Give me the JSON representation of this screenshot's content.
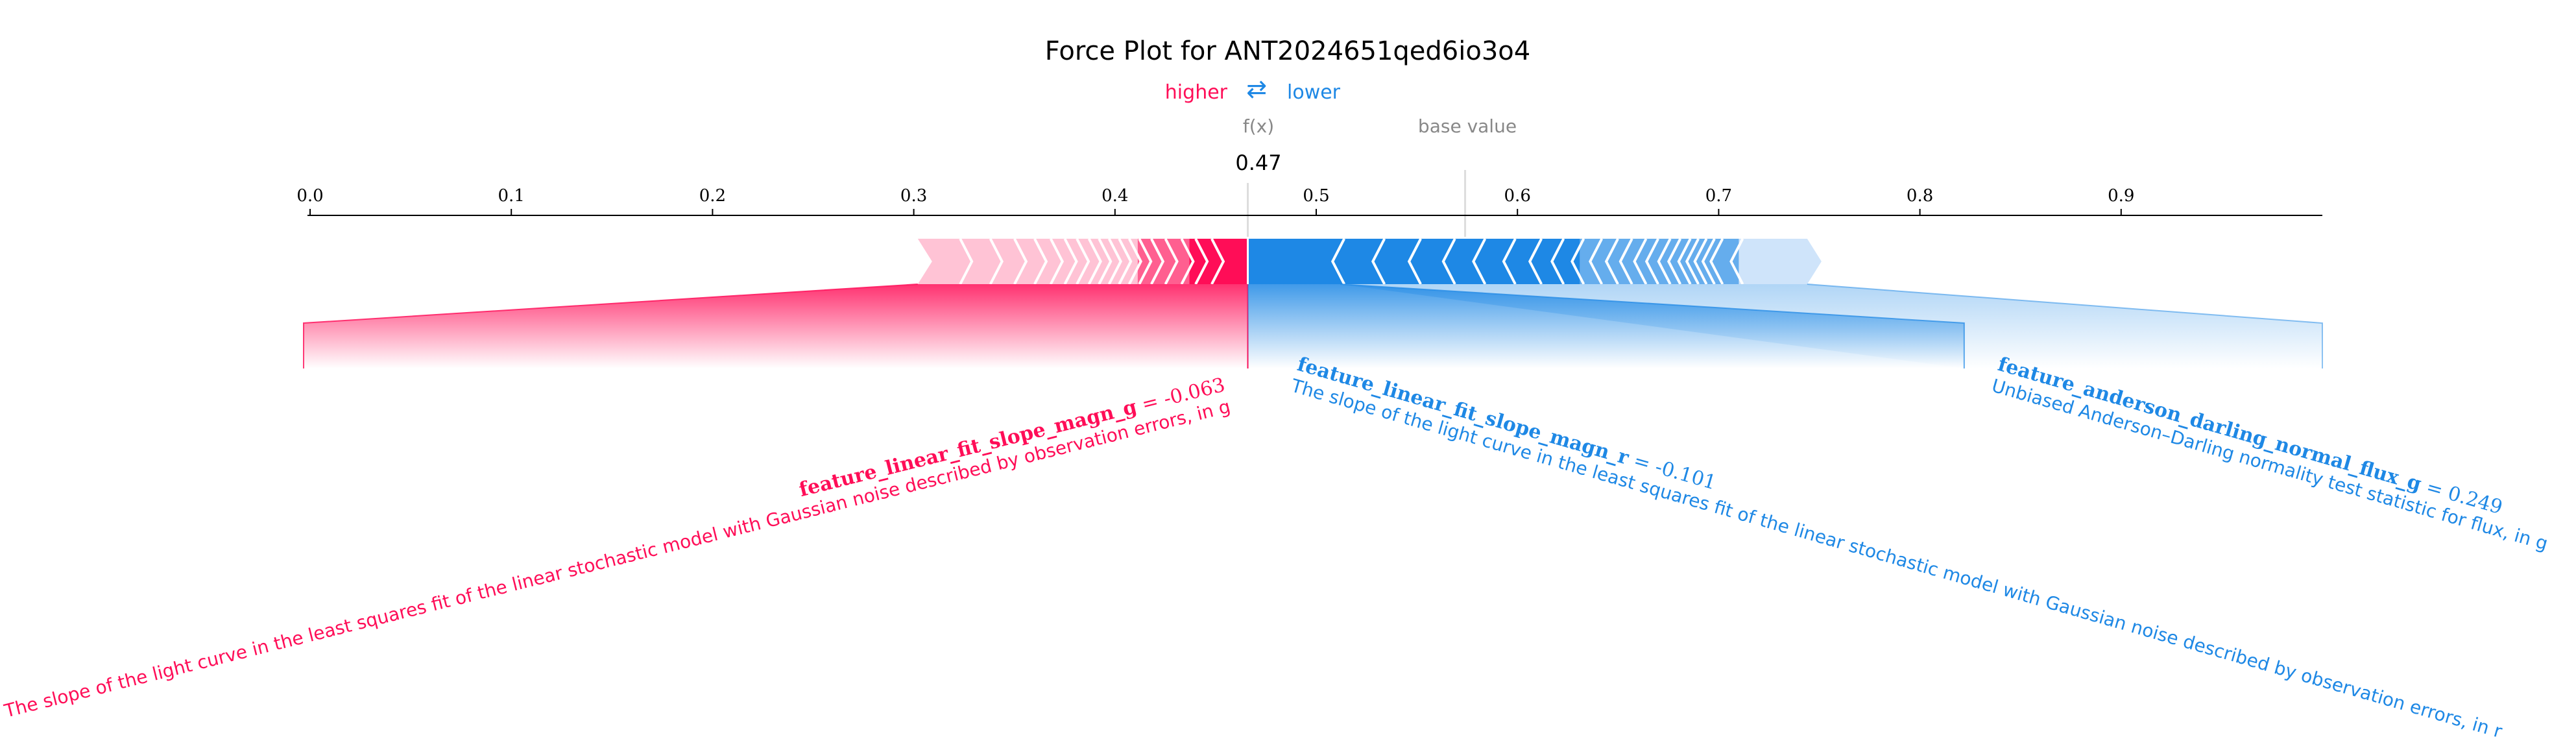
{
  "colors": {
    "positive": "#ff0d57",
    "negative": "#1e88e5",
    "neutral": "#888888",
    "axis": "#000000"
  },
  "chart_data": {
    "type": "force",
    "title": "Force Plot for ANT2024651qed6io3o4",
    "legend": {
      "higher": "higher",
      "arrows": "⇄",
      "lower": "lower"
    },
    "output_label": "f(x)",
    "output_value_label": "0.47",
    "base_value_label": "base value",
    "output_value": 0.466,
    "base_value": 0.574,
    "xlim": [
      0.0,
      1.0
    ],
    "ticks": [
      {
        "value": 0.0,
        "label": "0.0"
      },
      {
        "value": 0.1,
        "label": "0.1"
      },
      {
        "value": 0.2,
        "label": "0.2"
      },
      {
        "value": 0.3,
        "label": "0.3"
      },
      {
        "value": 0.4,
        "label": "0.4"
      },
      {
        "value": 0.5,
        "label": "0.5"
      },
      {
        "value": 0.6,
        "label": "0.6"
      },
      {
        "value": 0.7,
        "label": "0.7"
      },
      {
        "value": 0.8,
        "label": "0.8"
      },
      {
        "value": 0.9,
        "label": "0.9"
      }
    ],
    "bar_extent": [
      0.302,
      0.744
    ],
    "positive_segments": [
      0.302,
      0.325,
      0.34,
      0.352,
      0.362,
      0.37,
      0.377,
      0.383,
      0.389,
      0.394,
      0.399,
      0.404,
      0.409,
      0.414,
      0.42,
      0.427,
      0.435,
      0.442,
      0.45
    ],
    "negative_segments": [
      0.512,
      0.532,
      0.55,
      0.567,
      0.582,
      0.597,
      0.61,
      0.621,
      0.631,
      0.64,
      0.648,
      0.655,
      0.662,
      0.668,
      0.674,
      0.679,
      0.684,
      0.688,
      0.692,
      0.696,
      0.7,
      0.71
    ],
    "features": [
      {
        "side": "positive",
        "name": "feature_linear_fit_slope_magn_g",
        "value_text": " = -0.063",
        "description": "The slope of the light curve in the least squares fit of the linear stochastic model with Gaussian noise described by observation errors, in g",
        "effect_range": [
          0.302,
          0.466
        ]
      },
      {
        "side": "negative",
        "name": "feature_linear_fit_slope_magn_r",
        "value_text": " = -0.101",
        "description": "The slope of the light curve in the least squares fit of the linear stochastic model with Gaussian noise described by observation errors, in r",
        "effect_range": [
          0.466,
          0.512
        ]
      },
      {
        "side": "negative",
        "name": "feature_anderson_darling_normal_flux_g",
        "value_text": " = 0.249",
        "description": "Unbiased Anderson–Darling normality test statistic for flux, in g",
        "effect_range": [
          0.512,
          0.744
        ]
      }
    ]
  }
}
